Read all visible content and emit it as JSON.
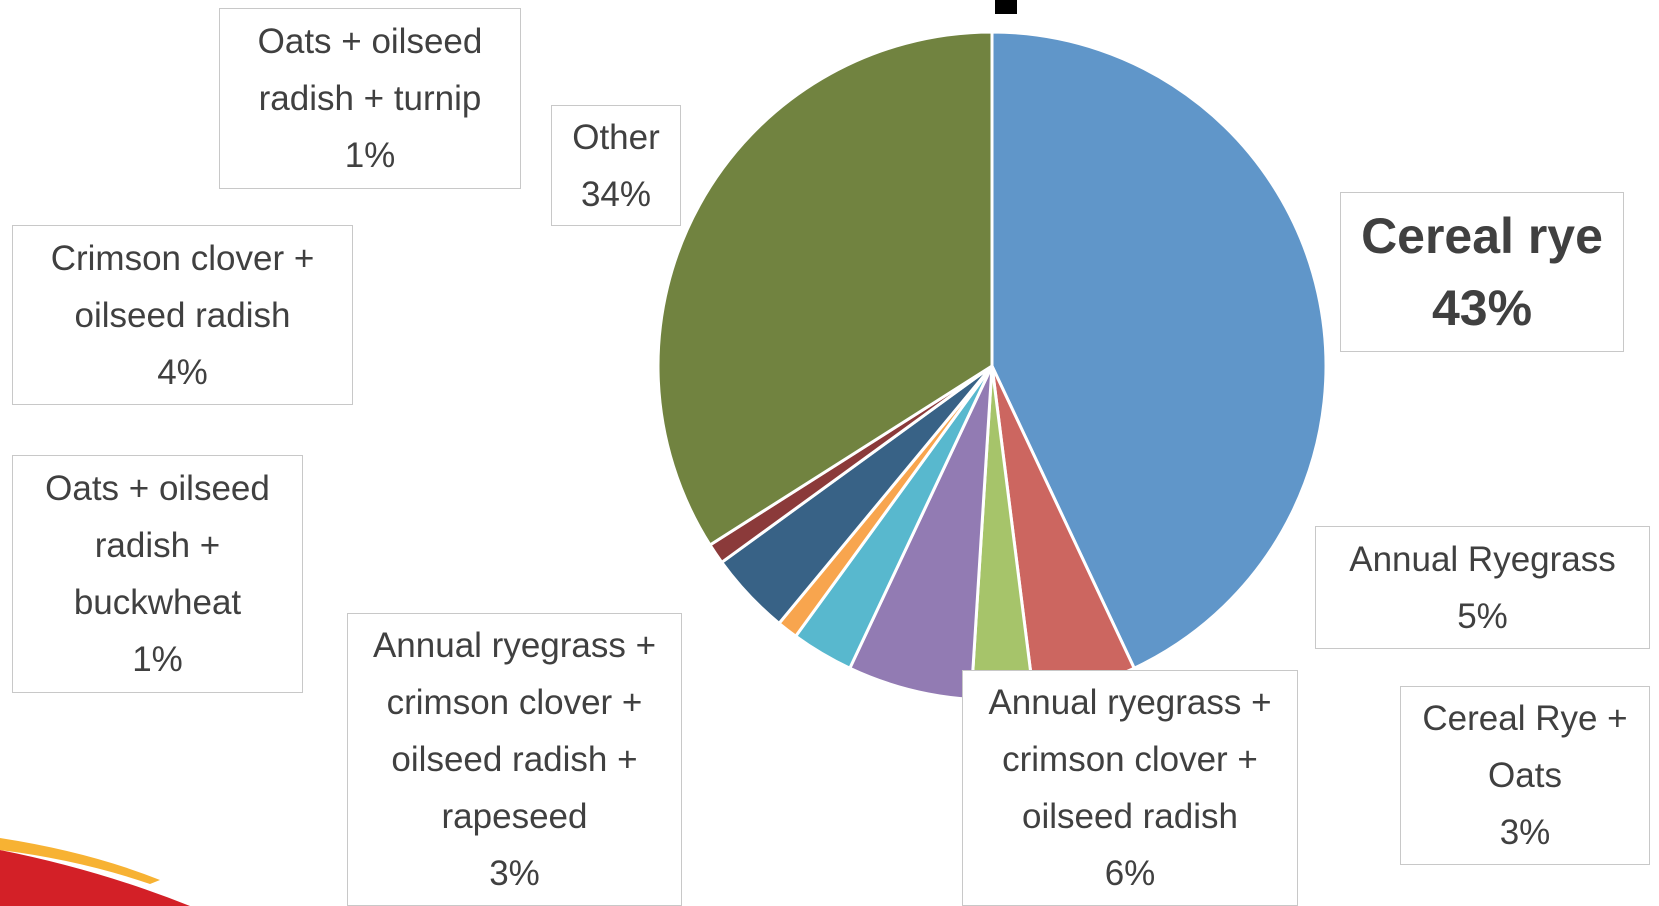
{
  "chart_data": {
    "type": "pie",
    "categories": [
      "Cereal rye",
      "Annual Ryegrass",
      "Cereal Rye + Oats",
      "Annual ryegrass + crimson clover + oilseed radish",
      "Annual ryegrass + crimson clover + oilseed radish + rapeseed",
      "Oats + oilseed radish + buckwheat",
      "Crimson clover + oilseed radish",
      "Oats + oilseed radish + turnip",
      "Other"
    ],
    "values": [
      43,
      5,
      3,
      6,
      3,
      1,
      4,
      1,
      34
    ],
    "value_labels": [
      "43%",
      "5%",
      "3%",
      "6%",
      "3%",
      "1%",
      "4%",
      "1%",
      "34%"
    ],
    "colors": [
      "#6096c9",
      "#cc6660",
      "#a6c46a",
      "#927bb3",
      "#58b8ce",
      "#f8a54e",
      "#386286",
      "#8b3a3a",
      "#718340"
    ]
  }
}
